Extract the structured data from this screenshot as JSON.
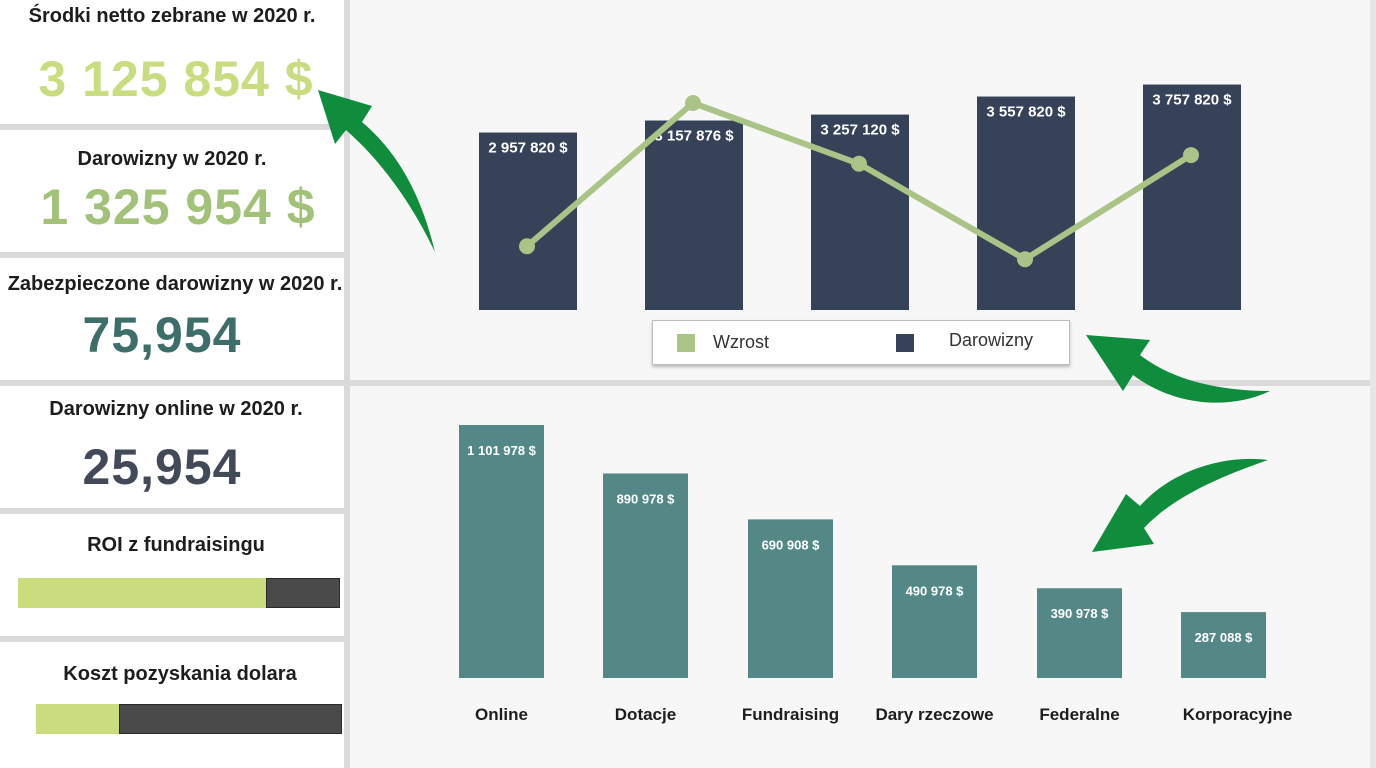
{
  "kpis": [
    {
      "title": "Środki netto zebrane w 2020 r.",
      "value": "3 125 854 $",
      "color": "#c8dc80"
    },
    {
      "title": "Darowizny w 2020 r.",
      "value": "1 325 954 $",
      "color": "#a2c27a"
    },
    {
      "title": "Zabezpieczone darowizny w 2020 r.",
      "value": "75,954",
      "color": "#3e6e6a"
    },
    {
      "title": "Darowizny online w 2020 r.",
      "value": "25,954",
      "color": "#424a57"
    }
  ],
  "meters": [
    {
      "title": "ROI z fundraisingu",
      "progress": 0.77
    },
    {
      "title": "Koszt pozyskania dolara",
      "progress": 0.27
    }
  ],
  "colors": {
    "navy": "#354258",
    "teal": "#548886",
    "line": "#a9c486",
    "meter_fill": "#c9dd7f",
    "meter_rest": "#4a4a4a",
    "arrow": "#0f8c3c"
  },
  "chart_data": [
    {
      "type": "bar",
      "categories": [
        "",
        "",
        "",
        "",
        ""
      ],
      "series": [
        {
          "name": "Darowizny",
          "values": [
            2957820,
            3157876,
            3257120,
            3557820,
            3757820
          ],
          "labels": [
            "2 957 820 $",
            "3 157 876 $",
            "3 257 120 $",
            "3 557 820 $",
            "3 757 820 $"
          ]
        },
        {
          "name": "Wzrost",
          "type": "line",
          "values": [
            3.4,
            10.0,
            7.2,
            2.8,
            7.6
          ]
        }
      ],
      "ylim": [
        0,
        4000000
      ],
      "legend": "bottom",
      "grid": false
    },
    {
      "type": "bar",
      "categories": [
        "Online",
        "Dotacje",
        "Fundraising",
        "Dary rzeczowe",
        "Federalne",
        "Korporacyjne"
      ],
      "values": [
        1101978,
        890978,
        690908,
        490978,
        390978,
        287088
      ],
      "labels": [
        "1 101 978 $",
        "890 978 $",
        "690 908 $",
        "490 978 $",
        "390 978 $",
        "287 088 $"
      ],
      "ylim": [
        0,
        1150000
      ],
      "grid": false
    }
  ]
}
